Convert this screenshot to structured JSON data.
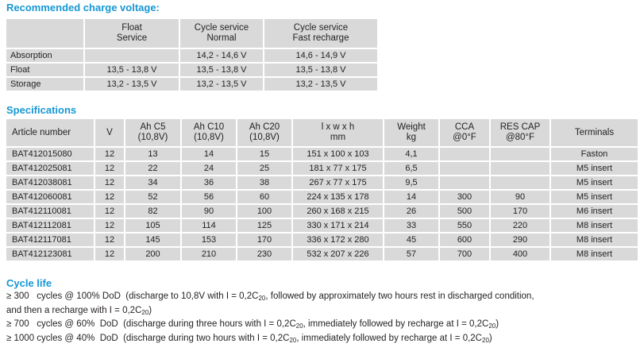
{
  "colors": {
    "heading_blue": "#1697d4",
    "cell_gray": "#d9d9d9",
    "text": "#231f20"
  },
  "headings": {
    "charge": "Recommended charge voltage:",
    "specifications": "Specifications",
    "cycle_life": "Cycle life"
  },
  "charge_table": {
    "headers": [
      "",
      "Float\nService",
      "Cycle service\nNormal",
      "Cycle service\nFast recharge"
    ],
    "rows": [
      [
        "Absorption",
        "",
        "14,2 - 14,6 V",
        "14,6 - 14,9 V"
      ],
      [
        "Float",
        "13,5 - 13,8 V",
        "13,5 - 13,8 V",
        "13,5 - 13,8 V"
      ],
      [
        "Storage",
        "13,2 - 13,5 V",
        "13,2 - 13,5 V",
        "13,2 - 13,5 V"
      ]
    ]
  },
  "spec_table": {
    "headers": [
      "Article number",
      "V",
      "Ah C5\n(10,8V)",
      "Ah C10\n(10,8V)",
      "Ah C20\n(10,8V)",
      "l x w x h\nmm",
      "Weight\nkg",
      "CCA\n@0°F",
      "RES CAP\n@80°F",
      "Terminals"
    ],
    "rows": [
      [
        "BAT412015080",
        "12",
        "13",
        "14",
        "15",
        "151 x 100 x 103",
        "4,1",
        "",
        "",
        "Faston"
      ],
      [
        "BAT412025081",
        "12",
        "22",
        "24",
        "25",
        "181 x 77 x 175",
        "6,5",
        "",
        "",
        "M5 insert"
      ],
      [
        "BAT412038081",
        "12",
        "34",
        "36",
        "38",
        "267 x 77 x 175",
        "9,5",
        "",
        "",
        "M5 insert"
      ],
      [
        "BAT412060081",
        "12",
        "52",
        "56",
        "60",
        "224 x 135 x 178",
        "14",
        "300",
        "90",
        "M5 insert"
      ],
      [
        "BAT412110081",
        "12",
        "82",
        "90",
        "100",
        "260 x 168 x 215",
        "26",
        "500",
        "170",
        "M6 insert"
      ],
      [
        "BAT412112081",
        "12",
        "105",
        "114",
        "125",
        "330 x 171 x 214",
        "33",
        "550",
        "220",
        "M8 insert"
      ],
      [
        "BAT412117081",
        "12",
        "145",
        "153",
        "170",
        "336 x 172 x 280",
        "45",
        "600",
        "290",
        "M8 insert"
      ],
      [
        "BAT412123081",
        "12",
        "200",
        "210",
        "230",
        "532 x 207 x 226",
        "57",
        "700",
        "400",
        "M8 insert"
      ]
    ]
  },
  "cycle_life": {
    "lines": [
      [
        {
          "t": "≥ 300   cycles @ 100% DoD  (discharge to 10,8V with I = 0,2C"
        },
        {
          "sub": "20"
        },
        {
          "t": ", followed by approximately two hours rest in discharged condition,"
        }
      ],
      [
        {
          "t": "and then a recharge with I = 0,2C"
        },
        {
          "sub": "20"
        },
        {
          "t": ")"
        }
      ],
      [
        {
          "t": "≥ 700   cycles @ 60%  DoD  (discharge during three hours with I = 0,2C"
        },
        {
          "sub": "20"
        },
        {
          "t": ", immediately followed by recharge at I = 0,2C"
        },
        {
          "sub": "20"
        },
        {
          "t": ")"
        }
      ],
      [
        {
          "t": "≥ 1000 cycles @ 40%  DoD  (discharge during two hours with I = 0,2C"
        },
        {
          "sub": "20"
        },
        {
          "t": ", immediately followed by recharge at I = 0,2C"
        },
        {
          "sub": "20"
        },
        {
          "t": ")"
        }
      ]
    ]
  }
}
